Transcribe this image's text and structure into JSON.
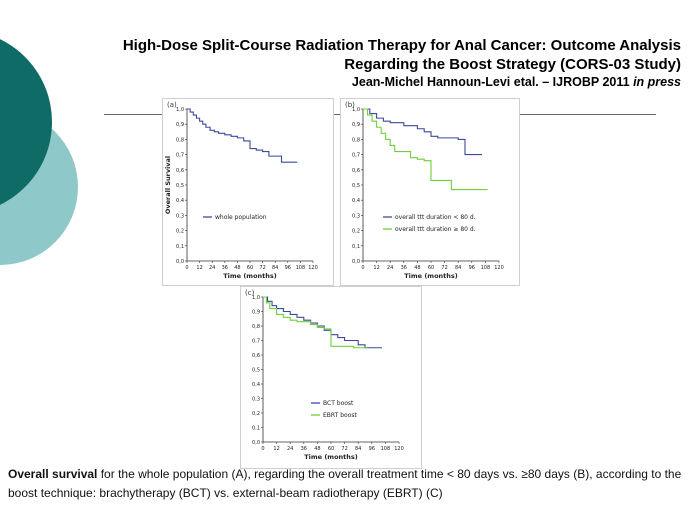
{
  "slide": {
    "title_line1": "High-Dose Split-Course Radiation Therapy for Anal Cancer: Outcome Analysis",
    "title_line2": "Regarding the Boost Strategy (CORS-03 Study)",
    "byline": "Jean-Michel Hannoun-Levi etal. – IJROBP 2011",
    "byline_italic": "in press",
    "caption_bold": "Overall survival",
    "caption_rest": " for the whole population (A), regarding the overall treatment time < 80 days vs. ≥80 days (B), according to the boost technique: brachytherapy (BCT) vs. external-beam radiotherapy (EBRT) (C)",
    "colors": {
      "teal_dark": "#0f6b66",
      "teal_light": "#8fc8c9",
      "blue": "#3a4a9c",
      "green": "#6fcf3a"
    }
  },
  "chart_data": [
    {
      "type": "line",
      "panel_label": "(a)",
      "title": "",
      "xlabel": "Time (months)",
      "ylabel": "Overall Survival",
      "xlim": [
        0,
        120
      ],
      "ylim": [
        0,
        1.0
      ],
      "x_ticks": [
        0,
        12,
        24,
        36,
        48,
        60,
        72,
        84,
        96,
        108,
        120
      ],
      "y_ticks": [
        "0,0",
        "0,1",
        "0,2",
        "0,3",
        "0,4",
        "0,5",
        "0,6",
        "0,7",
        "0,8",
        "0,9",
        "1,0"
      ],
      "series": [
        {
          "name": "whole population",
          "color": "#3a4a9c",
          "points": [
            [
              0,
              1.0
            ],
            [
              3,
              0.98
            ],
            [
              6,
              0.96
            ],
            [
              9,
              0.94
            ],
            [
              12,
              0.92
            ],
            [
              15,
              0.9
            ],
            [
              18,
              0.88
            ],
            [
              22,
              0.86
            ],
            [
              26,
              0.85
            ],
            [
              30,
              0.84
            ],
            [
              36,
              0.83
            ],
            [
              42,
              0.82
            ],
            [
              48,
              0.81
            ],
            [
              54,
              0.79
            ],
            [
              60,
              0.74
            ],
            [
              66,
              0.73
            ],
            [
              72,
              0.72
            ],
            [
              78,
              0.69
            ],
            [
              90,
              0.65
            ],
            [
              105,
              0.65
            ]
          ]
        }
      ]
    },
    {
      "type": "line",
      "panel_label": "(b)",
      "title": "",
      "xlabel": "Time (months)",
      "ylabel": "",
      "xlim": [
        0,
        120
      ],
      "ylim": [
        0,
        1.0
      ],
      "x_ticks": [
        0,
        12,
        24,
        36,
        48,
        60,
        72,
        84,
        96,
        108,
        120
      ],
      "y_ticks": [
        "0,0",
        "0,1",
        "0,2",
        "0,3",
        "0,4",
        "0,5",
        "0,6",
        "0,7",
        "0,8",
        "0,9",
        "1,0"
      ],
      "series": [
        {
          "name": "overall ttt duration < 80 d.",
          "color": "#3a4a9c",
          "points": [
            [
              0,
              1.0
            ],
            [
              6,
              0.97
            ],
            [
              12,
              0.94
            ],
            [
              18,
              0.92
            ],
            [
              24,
              0.91
            ],
            [
              36,
              0.89
            ],
            [
              48,
              0.87
            ],
            [
              54,
              0.85
            ],
            [
              60,
              0.82
            ],
            [
              66,
              0.81
            ],
            [
              84,
              0.8
            ],
            [
              90,
              0.7
            ],
            [
              105,
              0.7
            ]
          ]
        },
        {
          "name": "overall ttt duration ≥ 80 d.",
          "color": "#6fcf3a",
          "points": [
            [
              0,
              1.0
            ],
            [
              4,
              0.96
            ],
            [
              8,
              0.92
            ],
            [
              12,
              0.88
            ],
            [
              16,
              0.84
            ],
            [
              20,
              0.8
            ],
            [
              24,
              0.76
            ],
            [
              28,
              0.72
            ],
            [
              36,
              0.72
            ],
            [
              42,
              0.68
            ],
            [
              48,
              0.67
            ],
            [
              54,
              0.66
            ],
            [
              60,
              0.53
            ],
            [
              72,
              0.53
            ],
            [
              78,
              0.47
            ],
            [
              110,
              0.47
            ]
          ]
        }
      ]
    },
    {
      "type": "line",
      "panel_label": "(c)",
      "title": "",
      "xlabel": "Time (months)",
      "ylabel": "",
      "xlim": [
        0,
        120
      ],
      "ylim": [
        0,
        1.0
      ],
      "x_ticks": [
        0,
        12,
        24,
        36,
        48,
        60,
        72,
        84,
        96,
        108,
        120
      ],
      "y_ticks": [
        "0,0",
        "0,1",
        "0,2",
        "0,3",
        "0,4",
        "0,5",
        "0,6",
        "0,7",
        "0,8",
        "0,9",
        "1,0"
      ],
      "series": [
        {
          "name": "BCT boost",
          "color": "#3a4a9c",
          "points": [
            [
              0,
              1.0
            ],
            [
              4,
              0.97
            ],
            [
              8,
              0.94
            ],
            [
              12,
              0.92
            ],
            [
              18,
              0.9
            ],
            [
              24,
              0.88
            ],
            [
              30,
              0.86
            ],
            [
              36,
              0.84
            ],
            [
              42,
              0.82
            ],
            [
              48,
              0.8
            ],
            [
              54,
              0.77
            ],
            [
              60,
              0.74
            ],
            [
              66,
              0.72
            ],
            [
              72,
              0.7
            ],
            [
              84,
              0.67
            ],
            [
              90,
              0.65
            ],
            [
              105,
              0.65
            ]
          ]
        },
        {
          "name": "EBRT boost",
          "color": "#6fcf3a",
          "points": [
            [
              0,
              1.0
            ],
            [
              3,
              0.96
            ],
            [
              6,
              0.92
            ],
            [
              12,
              0.88
            ],
            [
              18,
              0.86
            ],
            [
              24,
              0.84
            ],
            [
              30,
              0.83
            ],
            [
              36,
              0.83
            ],
            [
              42,
              0.81
            ],
            [
              48,
              0.79
            ],
            [
              54,
              0.78
            ],
            [
              60,
              0.66
            ],
            [
              72,
              0.66
            ],
            [
              80,
              0.65
            ],
            [
              92,
              0.65
            ]
          ]
        }
      ]
    }
  ]
}
